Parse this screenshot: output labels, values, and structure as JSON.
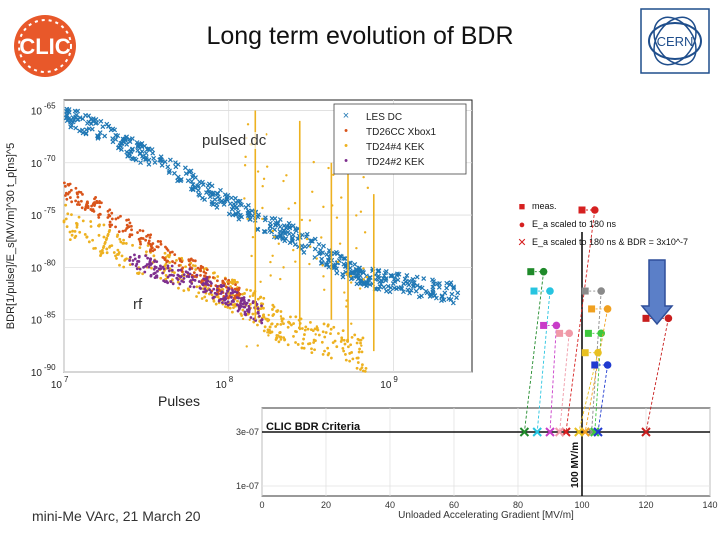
{
  "slide": {
    "title": "Long term evolution of BDR",
    "footer": "mini-Me VArc, 21 March 20",
    "annotations": {
      "pulsed_dc": "pulsed dc",
      "rf": "rf",
      "pulses": "Pulses"
    },
    "logos": {
      "clic": "CLIC",
      "cern": "CERN"
    }
  },
  "colors": {
    "les_dc": "#1f77b4",
    "tc26": "#d9541a",
    "tc24_4": "#edb120",
    "tc24_2": "#7e2f8e",
    "clic_logo": "#e8582a",
    "cern_logo": "#1f4e8c",
    "arrow": "#5b7fc8"
  },
  "chart_data": [
    {
      "type": "scatter",
      "xlabel": "",
      "ylabel": "BDR[1/pulse]/E_s[MV/m]^30 t_p[ns]^5",
      "xscale": "log",
      "yscale": "log",
      "xlim": [
        10000000,
        3000000000
      ],
      "ylim_exponent": [
        -90,
        -64
      ],
      "x_ticks": [
        {
          "base": "10",
          "exp": "7"
        },
        {
          "base": "10",
          "exp": "8"
        },
        {
          "base": "10",
          "exp": "9"
        }
      ],
      "y_ticks": [
        {
          "base": "10",
          "exp": "-65"
        },
        {
          "base": "10",
          "exp": "-70"
        },
        {
          "base": "10",
          "exp": "-75"
        },
        {
          "base": "10",
          "exp": "-80"
        },
        {
          "base": "10",
          "exp": "-85"
        },
        {
          "base": "10",
          "exp": "-90"
        }
      ],
      "legend": {
        "position": "top-right",
        "entries": [
          {
            "marker": "×",
            "label": "LES DC",
            "color": "#1f77b4"
          },
          {
            "marker": "•",
            "label": "TD26CC Xbox1",
            "color": "#d9541a"
          },
          {
            "marker": "•",
            "label": "TD24#4 KEK",
            "color": "#edb120"
          },
          {
            "marker": "•",
            "label": "TD24#2 KEK",
            "color": "#7e2f8e"
          }
        ]
      },
      "series": [
        {
          "name": "LES DC",
          "points": [
            [
              10000000.0,
              -65.5
            ],
            [
              15000000.0,
              -66.5
            ],
            [
              25000000.0,
              -68.5
            ],
            [
              40000000.0,
              -70
            ],
            [
              70000000.0,
              -72.5
            ],
            [
              100000000.0,
              -74
            ],
            [
              150000000.0,
              -75.5
            ],
            [
              250000000.0,
              -77
            ],
            [
              400000000.0,
              -79
            ],
            [
              550000000.0,
              -80.5
            ],
            [
              700000000.0,
              -81
            ],
            [
              1000000000.0,
              -81.5
            ],
            [
              1500000000.0,
              -82
            ],
            [
              2500000000.0,
              -82.5
            ]
          ]
        },
        {
          "name": "TD26CC Xbox1",
          "points": [
            [
              10000000.0,
              -72.5
            ],
            [
              15000000.0,
              -74
            ],
            [
              20000000.0,
              -75.5
            ],
            [
              30000000.0,
              -77
            ],
            [
              40000000.0,
              -78.5
            ],
            [
              60000000.0,
              -80
            ],
            [
              80000000.0,
              -81.5
            ],
            [
              120000000.0,
              -82.5
            ]
          ]
        },
        {
          "name": "TD24#4 KEK",
          "points": [
            [
              10000000.0,
              -75.5
            ],
            [
              20000000.0,
              -78
            ],
            [
              40000000.0,
              -80
            ],
            [
              70000000.0,
              -81.5
            ],
            [
              100000000.0,
              -82.5
            ],
            [
              150000000.0,
              -84
            ],
            [
              200000000.0,
              -85.5
            ],
            [
              300000000.0,
              -86.5
            ],
            [
              500000000.0,
              -87.5
            ],
            [
              700000000.0,
              -88.5
            ]
          ]
        },
        {
          "name": "TD24#2 KEK",
          "points": [
            [
              25000000.0,
              -79
            ],
            [
              40000000.0,
              -80.5
            ],
            [
              60000000.0,
              -81
            ],
            [
              90000000.0,
              -82.5
            ],
            [
              120000000.0,
              -83.5
            ],
            [
              160000000.0,
              -84.5
            ]
          ]
        }
      ]
    },
    {
      "type": "scatter",
      "title": "CLIC BDR Criteria",
      "xlabel": "Unloaded Accelerating Gradient [MV/m]",
      "ylabel": "",
      "xlim": [
        0,
        140
      ],
      "x_ticks": [
        "0",
        "20",
        "40",
        "60",
        "80",
        "100",
        "120",
        "140"
      ],
      "y_ticks": [
        "3e-07",
        "1e-07"
      ],
      "vline_label": "100 MV/m",
      "legend": {
        "position": "top-left",
        "entries": [
          {
            "marker": "■",
            "label": "meas.",
            "color": "#d62020"
          },
          {
            "marker": "●",
            "label": "E_a scaled to 180 ns",
            "color": "#d62020"
          },
          {
            "marker": "✕",
            "label": "E_a scaled to 180 ns & BDR = 3x10^-7",
            "color": "#d62020"
          }
        ]
      },
      "series": [
        {
          "name": "red",
          "color": "#d62020",
          "meas": [
            100,
            0.0001
          ],
          "scaled": [
            104,
            0.0001
          ],
          "criteria": [
            95,
            3e-07
          ]
        },
        {
          "name": "darkgreen",
          "color": "#1f8a2a",
          "meas": [
            84,
            4e-05
          ],
          "scaled": [
            88,
            4e-05
          ],
          "criteria": [
            82,
            3e-07
          ]
        },
        {
          "name": "cyan",
          "color": "#27c4e0",
          "meas": [
            85,
            3e-05
          ],
          "scaled": [
            90,
            3e-05
          ],
          "criteria": [
            86,
            3e-07
          ]
        },
        {
          "name": "gray",
          "color": "#8a8a8a",
          "meas": [
            101,
            3e-05
          ],
          "scaled": [
            106,
            3e-05
          ],
          "criteria": [
            103,
            3e-07
          ]
        },
        {
          "name": "darkred",
          "color": "#c81e1e",
          "meas": [
            120,
            2e-05
          ],
          "scaled": [
            127,
            2e-05
          ],
          "criteria": [
            120,
            3e-07
          ]
        },
        {
          "name": "magenta",
          "color": "#c83cc8",
          "meas": [
            88,
            1.8e-05
          ],
          "scaled": [
            92,
            1.8e-05
          ],
          "criteria": [
            90,
            3e-07
          ]
        },
        {
          "name": "pink",
          "color": "#f09aa8",
          "meas": [
            93,
            1.6e-05
          ],
          "scaled": [
            96,
            1.6e-05
          ],
          "criteria": [
            93,
            3e-07
          ]
        },
        {
          "name": "green",
          "color": "#3cc83c",
          "meas": [
            102,
            1.6e-05
          ],
          "scaled": [
            106,
            1.6e-05
          ],
          "criteria": [
            104,
            3e-07
          ]
        },
        {
          "name": "orange",
          "color": "#f0a020",
          "meas": [
            103,
            2.3e-05
          ],
          "scaled": [
            108,
            2.3e-05
          ],
          "criteria": [
            101,
            3e-07
          ]
        },
        {
          "name": "gold",
          "color": "#e8c020",
          "meas": [
            101,
            1.2e-05
          ],
          "scaled": [
            105,
            1.2e-05
          ],
          "criteria": [
            99,
            3e-07
          ]
        },
        {
          "name": "blue",
          "color": "#1f3ad0",
          "meas": [
            104,
            1e-05
          ],
          "scaled": [
            108,
            1e-05
          ],
          "criteria": [
            105,
            3e-07
          ]
        }
      ]
    }
  ]
}
